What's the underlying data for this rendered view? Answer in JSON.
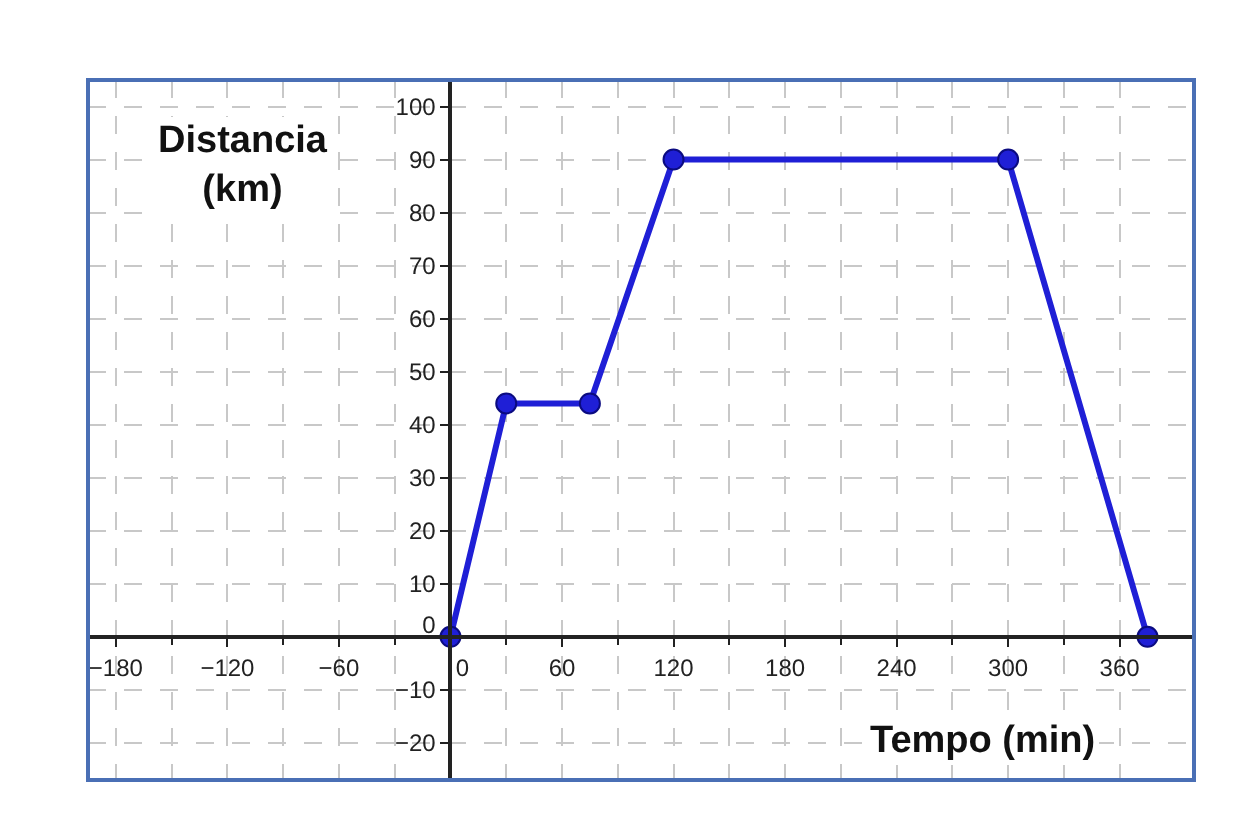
{
  "chart_data": {
    "type": "line",
    "xlabel": "Tempo (min)",
    "ylabel": "Distancia (km)",
    "x": [
      0,
      30,
      75,
      120,
      300,
      375
    ],
    "series": [
      {
        "color": "#1f1fd6",
        "values": [
          0,
          44,
          44,
          90,
          90,
          0
        ]
      }
    ],
    "xlim": [
      -195,
      400
    ],
    "ylim": [
      -27,
      105
    ],
    "xticks": [
      -180,
      -120,
      -60,
      0,
      60,
      120,
      180,
      240,
      300,
      360
    ],
    "yticks": [
      -20,
      -10,
      0,
      10,
      20,
      30,
      40,
      50,
      60,
      70,
      80,
      90,
      100
    ],
    "grid": true,
    "marker": "circle",
    "line_style": "solid"
  }
}
